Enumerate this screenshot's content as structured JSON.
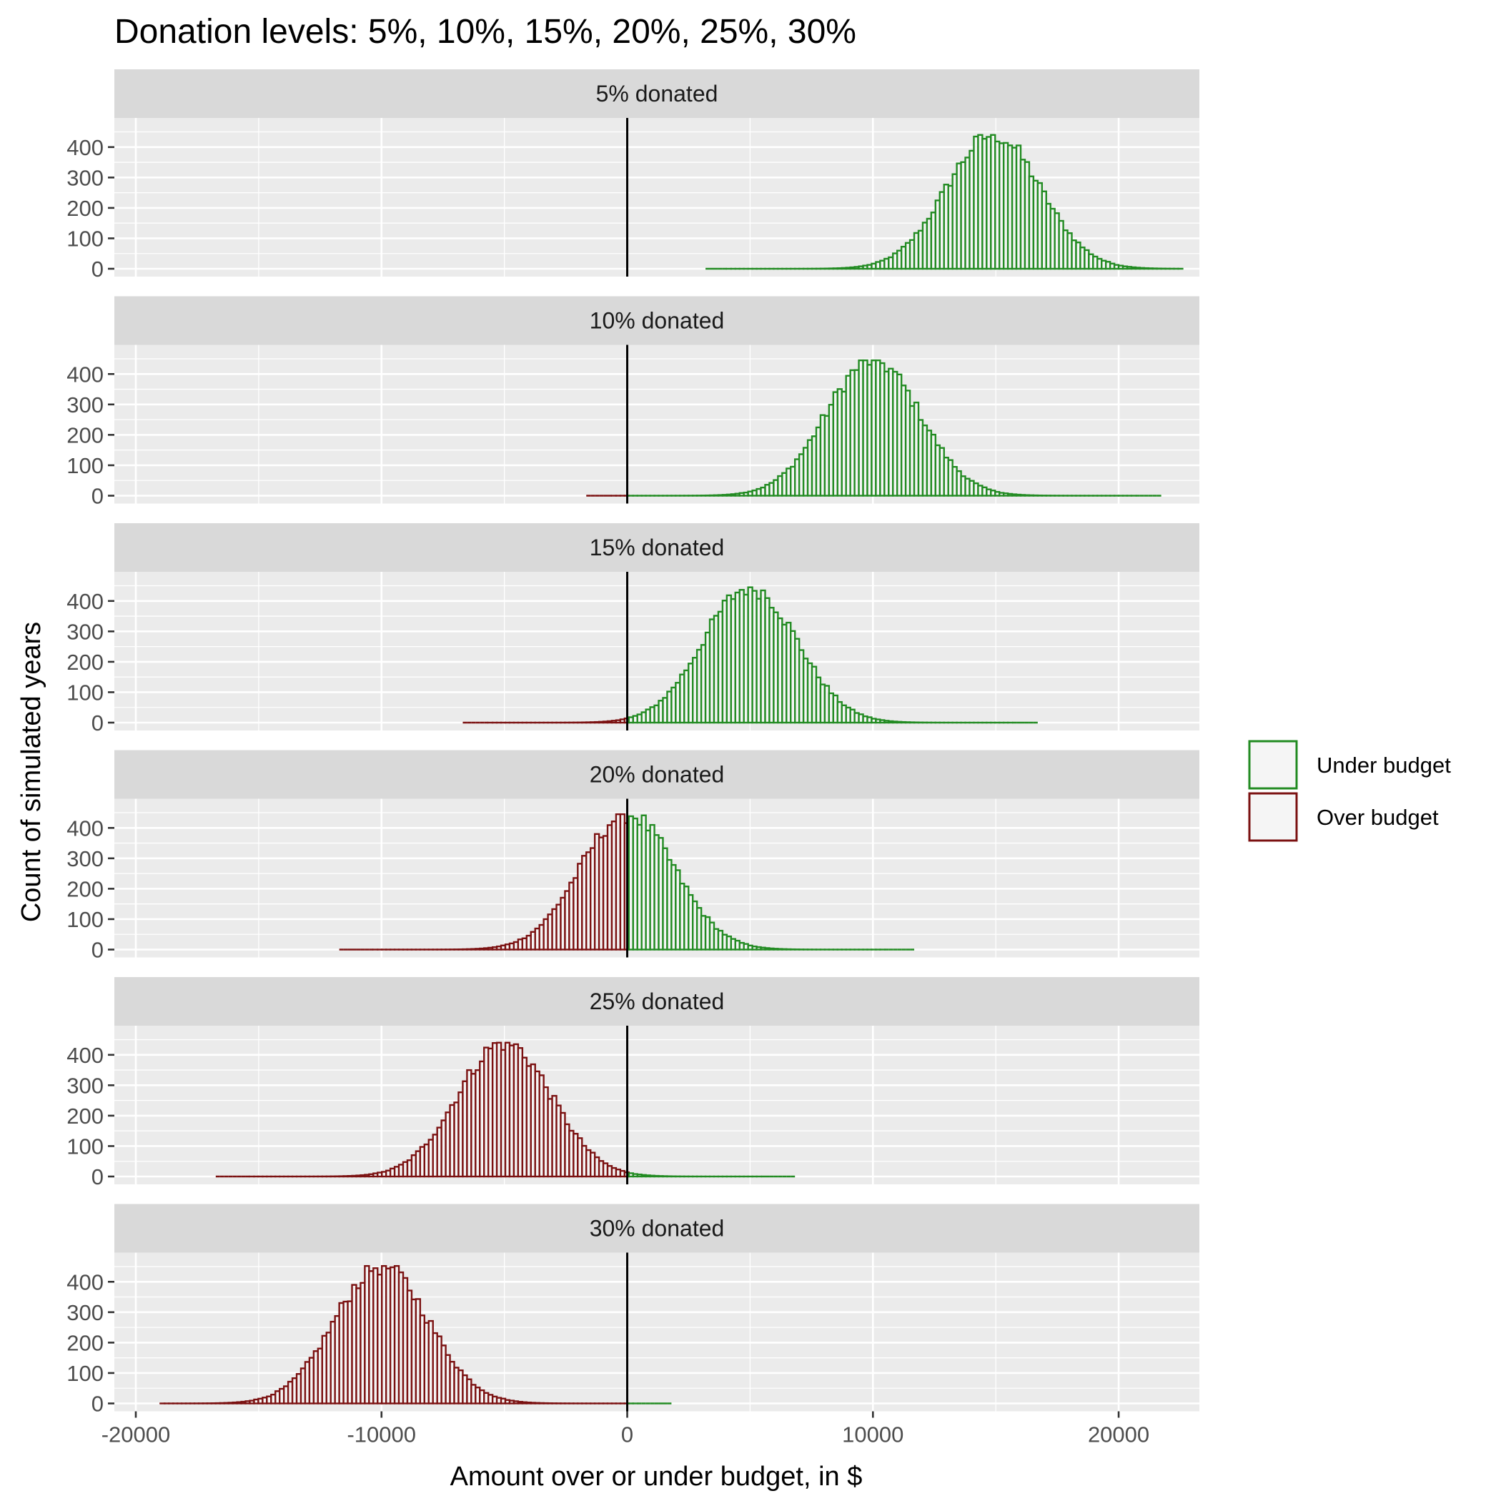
{
  "chart_data": {
    "type": "bar",
    "subtype": "histogram-facets",
    "title": "Donation levels: 5%, 10%, 15%, 20%, 25%, 30%",
    "xlabel": "Amount over or under budget, in $",
    "ylabel": "Count of simulated years",
    "xlim": [
      -20000,
      22500
    ],
    "ylim": [
      0,
      450
    ],
    "x_ticks": [
      -20000,
      -10000,
      0,
      10000,
      20000
    ],
    "x_tick_labels": [
      "-20000",
      "-10000",
      "0",
      "10000",
      "20000"
    ],
    "y_ticks": [
      0,
      100,
      200,
      300,
      400
    ],
    "y_tick_labels": [
      "0",
      "100",
      "200",
      "300",
      "400"
    ],
    "grid": true,
    "reference_line_x": 0,
    "histogram_range": [
      -19000,
      22600
    ],
    "legend": {
      "position": "right",
      "items": [
        {
          "label": "Under budget",
          "color": "#228b22"
        },
        {
          "label": "Over budget",
          "color": "#7b1111"
        }
      ]
    },
    "fill_color": "#f5f5f5",
    "panels": [
      {
        "label": "5% donated",
        "mean": 14900,
        "sd": 1900,
        "peak": 440
      },
      {
        "label": "10% donated",
        "mean": 10000,
        "sd": 1900,
        "peak": 445
      },
      {
        "label": "15% donated",
        "mean": 5000,
        "sd": 1900,
        "peak": 445
      },
      {
        "label": "20% donated",
        "mean": 0,
        "sd": 1900,
        "peak": 445
      },
      {
        "label": "25% donated",
        "mean": -5000,
        "sd": 1900,
        "peak": 440
      },
      {
        "label": "30% donated",
        "mean": -10000,
        "sd": 1900,
        "peak": 452
      }
    ]
  }
}
